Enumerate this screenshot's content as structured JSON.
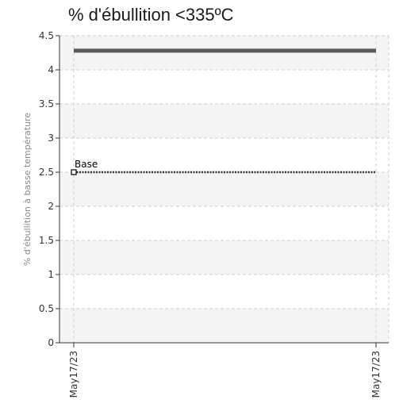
{
  "chart_data": {
    "type": "line",
    "title": "% d'ébullition <335ºC",
    "xlabel": "",
    "ylabel": "% d'ébullition à basse température",
    "categories": [
      "May17/23",
      "May17/23"
    ],
    "ylim": [
      0,
      4.5
    ],
    "yticks": [
      "0",
      "0.5",
      "1",
      "1.5",
      "2",
      "2.5",
      "3",
      "3.5",
      "4",
      "4.5"
    ],
    "grid": true,
    "series": [
      {
        "values": [
          4.28,
          4.28
        ],
        "color": "#595959",
        "style": "solid"
      },
      {
        "name": "Base",
        "values": [
          2.5,
          2.5
        ],
        "color": "#333333",
        "style": "dotted"
      }
    ],
    "annotations": [
      {
        "label": "Base",
        "y": 2.5
      }
    ],
    "band_color": "#f4f4f4"
  }
}
